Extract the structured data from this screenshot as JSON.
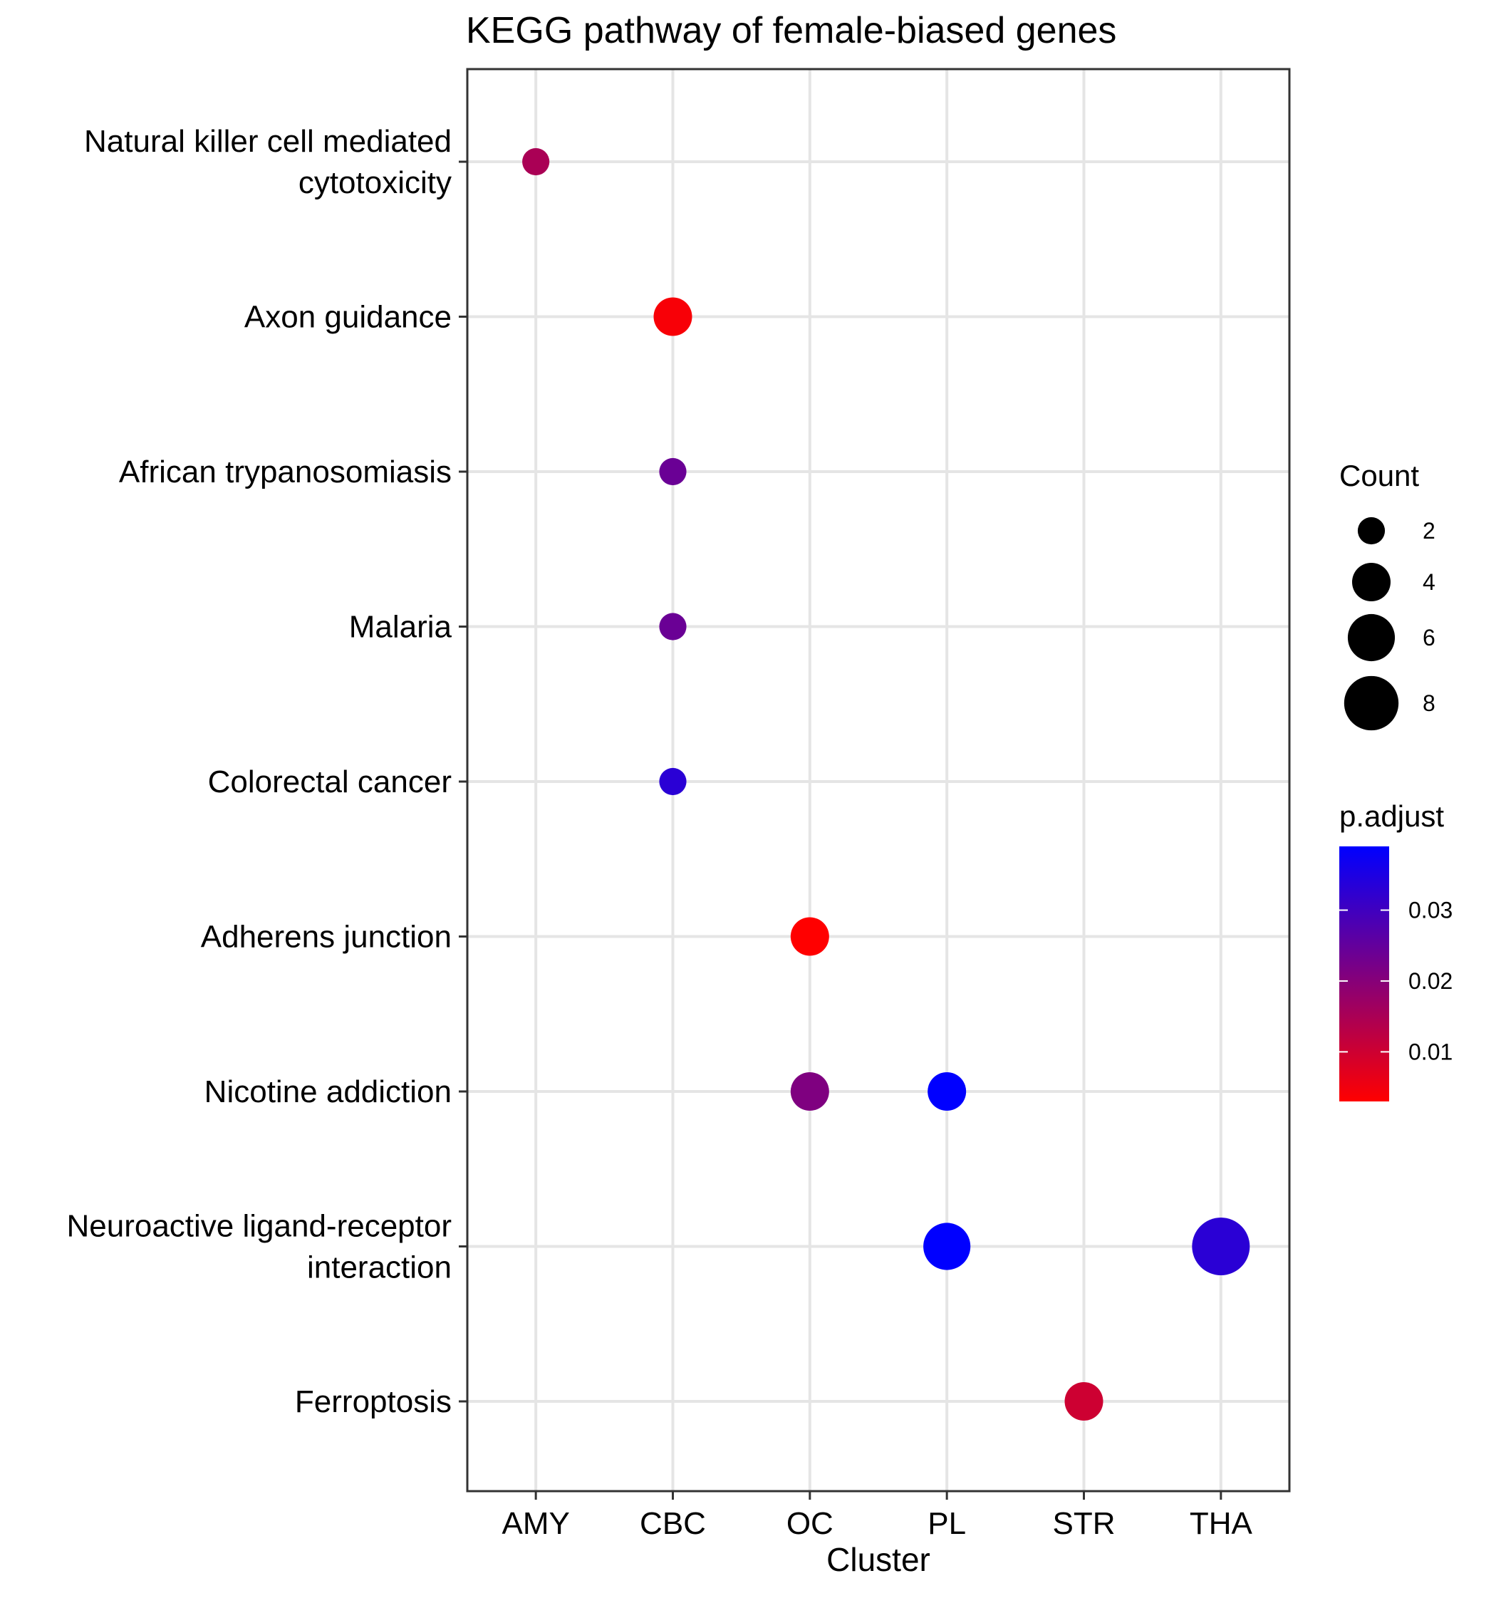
{
  "chart_data": {
    "type": "scatter",
    "title": "KEGG pathway of female-biased genes",
    "xlabel": "Cluster",
    "ylabel": "",
    "x_categories": [
      "AMY",
      "CBC",
      "OC",
      "PL",
      "STR",
      "THA"
    ],
    "y_categories": [
      [
        "Natural killer cell mediated",
        "cytotoxicity"
      ],
      [
        "Axon guidance"
      ],
      [
        "African trypanosomiasis"
      ],
      [
        "Malaria"
      ],
      [
        "Colorectal cancer"
      ],
      [
        "Adherens junction"
      ],
      [
        "Nicotine addiction"
      ],
      [
        "Neuroactive ligand-receptor",
        "interaction"
      ],
      [
        "Ferroptosis"
      ]
    ],
    "points": [
      {
        "x": "AMY",
        "y": 0,
        "count": 2,
        "p_adjust": 0.015
      },
      {
        "x": "CBC",
        "y": 1,
        "count": 4,
        "p_adjust": 0.004
      },
      {
        "x": "CBC",
        "y": 2,
        "count": 2,
        "p_adjust": 0.024
      },
      {
        "x": "CBC",
        "y": 3,
        "count": 2,
        "p_adjust": 0.024
      },
      {
        "x": "CBC",
        "y": 4,
        "count": 2,
        "p_adjust": 0.033
      },
      {
        "x": "OC",
        "y": 5,
        "count": 4,
        "p_adjust": 0.003
      },
      {
        "x": "OC",
        "y": 6,
        "count": 4,
        "p_adjust": 0.021
      },
      {
        "x": "PL",
        "y": 6,
        "count": 4,
        "p_adjust": 0.039
      },
      {
        "x": "PL",
        "y": 7,
        "count": 6,
        "p_adjust": 0.039
      },
      {
        "x": "THA",
        "y": 7,
        "count": 9,
        "p_adjust": 0.033
      },
      {
        "x": "STR",
        "y": 8,
        "count": 4,
        "p_adjust": 0.01
      }
    ],
    "size_legend": {
      "title": "Count",
      "values": [
        2,
        4,
        6,
        8
      ]
    },
    "color_legend": {
      "title": "p.adjust",
      "range": [
        0.003,
        0.039
      ],
      "ticks": [
        0.01,
        0.02,
        0.03
      ],
      "tick_labels": [
        "0.01",
        "0.02",
        "0.03"
      ],
      "low_color": "#ff0000",
      "high_color": "#0000ff"
    },
    "grid": true,
    "legend_position": "right"
  }
}
